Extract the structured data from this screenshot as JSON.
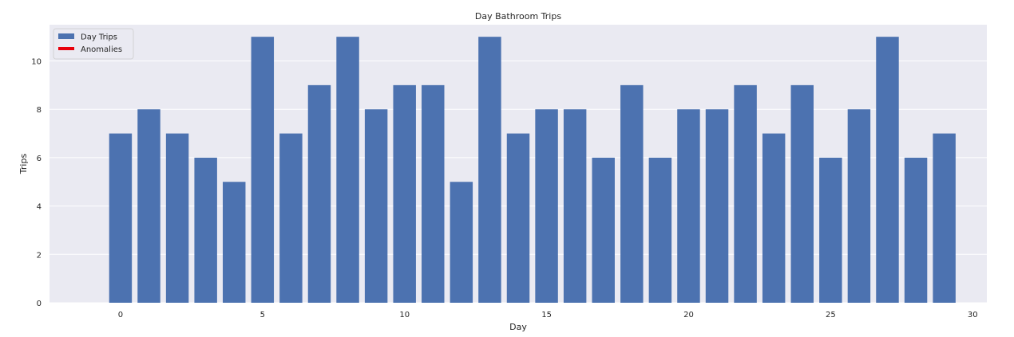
{
  "chart_data": {
    "type": "bar",
    "title": "Day Bathroom Trips",
    "xlabel": "Day",
    "ylabel": "Trips",
    "x": [
      0,
      1,
      2,
      3,
      4,
      5,
      6,
      7,
      8,
      9,
      10,
      11,
      12,
      13,
      14,
      15,
      16,
      17,
      18,
      19,
      20,
      21,
      22,
      23,
      24,
      25,
      26,
      27,
      28,
      29
    ],
    "values": [
      7,
      8,
      7,
      6,
      5,
      11,
      7,
      9,
      11,
      8,
      9,
      9,
      5,
      11,
      7,
      8,
      8,
      6,
      9,
      6,
      8,
      8,
      9,
      7,
      9,
      6,
      8,
      11,
      6,
      7
    ],
    "xlim": [
      -2.5,
      30.5
    ],
    "ylim": [
      0,
      11.5
    ],
    "xticks": [
      0,
      5,
      10,
      15,
      20,
      25,
      30
    ],
    "yticks": [
      0,
      2,
      4,
      6,
      8,
      10
    ],
    "grid": true,
    "legend_position": "top-left",
    "series": [
      {
        "name": "Day Trips",
        "color": "#4c72b0"
      },
      {
        "name": "Anomalies",
        "color": "#e8000b"
      }
    ],
    "background_color": "#eaeaf2"
  }
}
